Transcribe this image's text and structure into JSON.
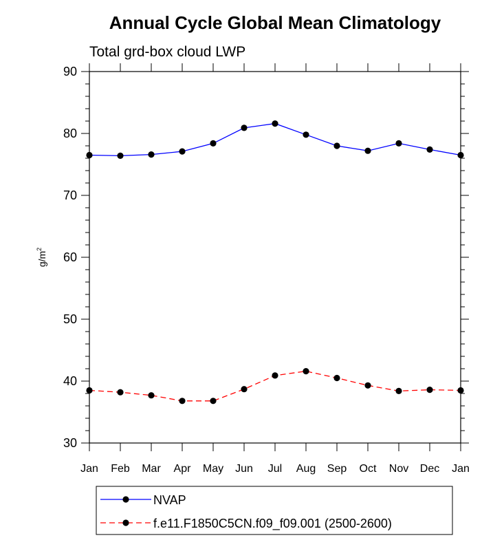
{
  "chart_data": {
    "type": "line",
    "title": "Annual Cycle Global Mean Climatology",
    "subtitle": "Total grd-box cloud LWP",
    "ylabel": "g/m",
    "ylabel_sup": "2",
    "xlabel": "",
    "categories": [
      "Jan",
      "Feb",
      "Mar",
      "Apr",
      "May",
      "Jun",
      "Jul",
      "Aug",
      "Sep",
      "Oct",
      "Nov",
      "Dec",
      "Jan"
    ],
    "ylim": [
      30,
      90
    ],
    "yticks": [
      30,
      40,
      50,
      60,
      70,
      80,
      90
    ],
    "grid": false,
    "legend_position": "bottom",
    "series": [
      {
        "name": "NVAP",
        "color": "#0000ff",
        "line_style": "solid",
        "marker": "filled-circle",
        "values": [
          76.5,
          76.4,
          76.6,
          77.1,
          78.4,
          80.9,
          81.6,
          79.8,
          78.0,
          77.2,
          78.4,
          77.4,
          76.5
        ]
      },
      {
        "name": "f.e11.F1850C5CN.f09_f09.001 (2500-2600)",
        "color": "#ff0000",
        "line_style": "dashed",
        "marker": "filled-circle",
        "values": [
          38.5,
          38.2,
          37.7,
          36.8,
          36.8,
          38.7,
          40.9,
          41.6,
          40.5,
          39.3,
          38.4,
          38.6,
          38.5
        ]
      }
    ]
  }
}
